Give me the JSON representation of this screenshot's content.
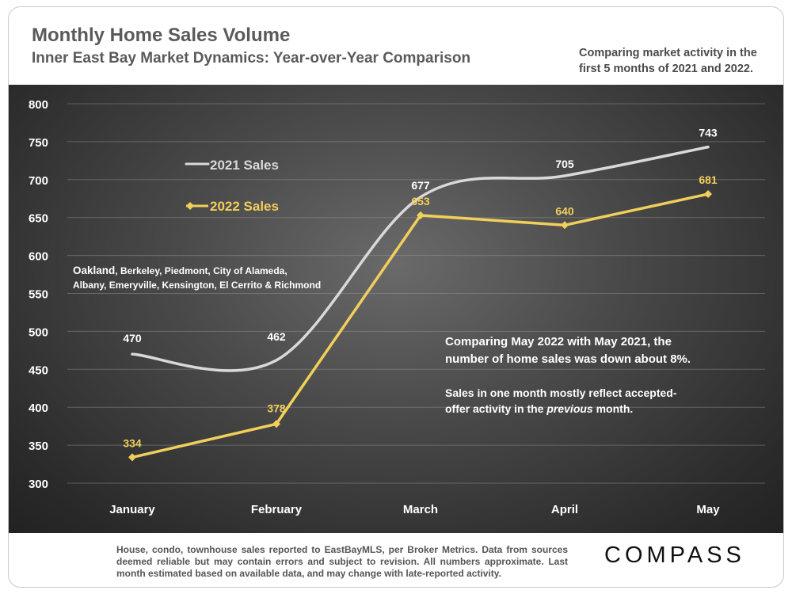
{
  "header": {
    "title": "Monthly Home Sales Volume",
    "subtitle": "Inner East Bay Market Dynamics: Year-over-Year Comparison",
    "side_note": "Comparing market activity in the first 5 months of 2021 and 2022."
  },
  "chart_data": {
    "type": "line",
    "categories": [
      "January",
      "February",
      "March",
      "April",
      "May"
    ],
    "series": [
      {
        "name": "2021 Sales",
        "values": [
          470,
          462,
          677,
          705,
          743
        ],
        "color": "#d9d9d9"
      },
      {
        "name": "2022 Sales",
        "values": [
          334,
          378,
          653,
          640,
          681
        ],
        "color": "#f2cf5b"
      }
    ],
    "ylim": [
      300,
      800
    ],
    "yticks": [
      300,
      350,
      400,
      450,
      500,
      550,
      600,
      650,
      700,
      750,
      800
    ],
    "grid": true,
    "legend": "top-left"
  },
  "annotations": {
    "areas_bold": "Oakland",
    "areas_line1_rest": ", Berkeley, Piedmont, City of Alameda,",
    "areas_line2": "Albany, Emeryville, Kensington, El Cerrito & Richmond",
    "comparison_line1": "Comparing May 2022 with May 2021, the",
    "comparison_line2": "number of home sales was down about 8%.",
    "note_line1": "Sales in one month mostly reflect accepted-",
    "note_line2_pre": "offer activity in the ",
    "note_line2_italic": "previous",
    "note_line2_post": " month."
  },
  "footer": {
    "text": "House, condo, townhouse sales reported to EastBayMLS, per Broker Metrics. Data from sources deemed reliable but may contain errors and subject to revision. All numbers approximate. Last month estimated based on available data, and may change with late-reported activity."
  },
  "brand": {
    "logo": "COMPASS"
  }
}
